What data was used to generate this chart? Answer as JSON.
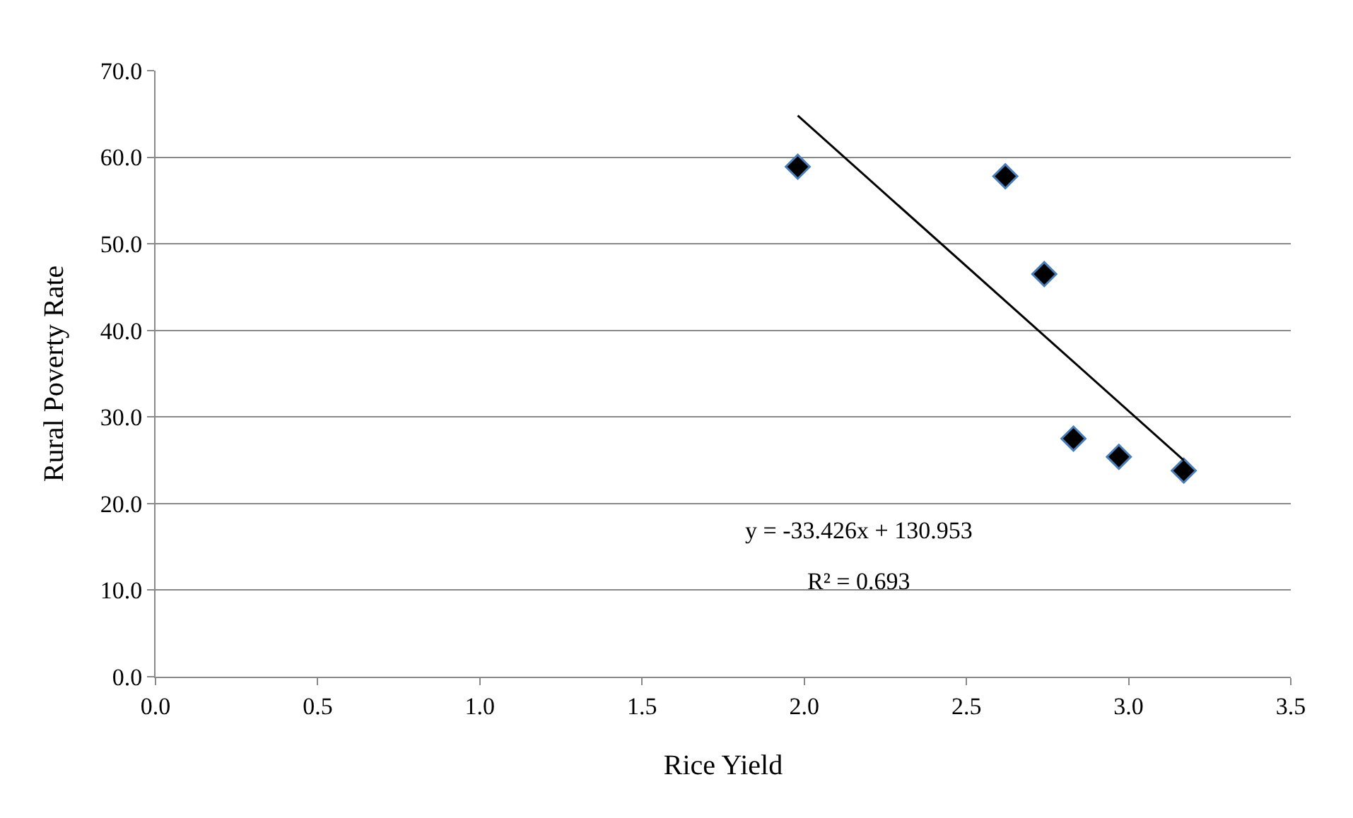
{
  "chart_data": {
    "type": "scatter",
    "xlabel": "Rice Yield",
    "ylabel": "Rural Poverty Rate",
    "xlim": [
      0,
      3.5
    ],
    "xticks": [
      {
        "value": 0,
        "label": "0.0"
      },
      {
        "value": 0.5,
        "label": "0.5"
      },
      {
        "value": 1,
        "label": "1.0"
      },
      {
        "value": 1.5,
        "label": "1.5"
      },
      {
        "value": 2,
        "label": "2.0"
      },
      {
        "value": 2.5,
        "label": "2.5"
      },
      {
        "value": 3,
        "label": "3.0"
      },
      {
        "value": 3.5,
        "label": "3.5"
      }
    ],
    "ylim": [
      0,
      70
    ],
    "yticks": [
      {
        "value": 0,
        "label": "0.0"
      },
      {
        "value": 10,
        "label": "10.0"
      },
      {
        "value": 20,
        "label": "20.0"
      },
      {
        "value": 30,
        "label": "30.0"
      },
      {
        "value": 40,
        "label": "40.0"
      },
      {
        "value": 50,
        "label": "50.0"
      },
      {
        "value": 60,
        "label": "60.0"
      },
      {
        "value": 70,
        "label": "70.0"
      }
    ],
    "grid": "y",
    "marker": "diamond",
    "series": [
      {
        "color": "#000000",
        "x": [
          1.98,
          2.62,
          2.74,
          2.83,
          2.97,
          3.17
        ],
        "values": [
          58.9,
          57.8,
          46.5,
          27.5,
          25.4,
          23.8
        ]
      },
      {
        "type": "line",
        "marker": "none",
        "color": "#000000",
        "x": [
          1.98,
          3.17
        ],
        "values": [
          64.8,
          25.0
        ]
      }
    ],
    "annotations": [
      "y = -33.426x + 130.953",
      "R² = 0.693"
    ]
  }
}
